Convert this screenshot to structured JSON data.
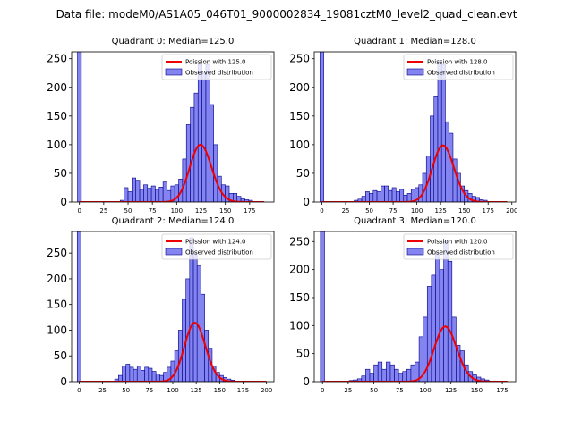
{
  "figure_title": "Data file: modeM0/AS1A05_046T01_9000002834_19081cztM0_level2_quad_clean.evt",
  "colors": {
    "bar_fill": "#7777ee",
    "bar_edge": "#000088",
    "fit_line": "#ee0000",
    "axes": "#000000"
  },
  "chart_data": [
    {
      "type": "bar",
      "title": "Quadrant 0: Median=125.0",
      "xlim": [
        -8,
        200
      ],
      "ylim": [
        0,
        262
      ],
      "xticks": [
        0,
        25,
        50,
        75,
        100,
        125,
        150,
        175
      ],
      "yticks": [
        0,
        50,
        100,
        150,
        200,
        250
      ],
      "bin_width": 4,
      "zero_bar": {
        "x": 0,
        "value": 262
      },
      "bins": [
        {
          "x": 44,
          "value": 3
        },
        {
          "x": 48,
          "value": 25
        },
        {
          "x": 52,
          "value": 18
        },
        {
          "x": 56,
          "value": 42
        },
        {
          "x": 60,
          "value": 38
        },
        {
          "x": 64,
          "value": 22
        },
        {
          "x": 68,
          "value": 30
        },
        {
          "x": 72,
          "value": 24
        },
        {
          "x": 76,
          "value": 28
        },
        {
          "x": 80,
          "value": 22
        },
        {
          "x": 84,
          "value": 26
        },
        {
          "x": 88,
          "value": 35
        },
        {
          "x": 92,
          "value": 20
        },
        {
          "x": 96,
          "value": 28
        },
        {
          "x": 100,
          "value": 30
        },
        {
          "x": 104,
          "value": 40
        },
        {
          "x": 108,
          "value": 75
        },
        {
          "x": 112,
          "value": 135
        },
        {
          "x": 116,
          "value": 165
        },
        {
          "x": 120,
          "value": 190
        },
        {
          "x": 124,
          "value": 240
        },
        {
          "x": 128,
          "value": 225
        },
        {
          "x": 132,
          "value": 240
        },
        {
          "x": 136,
          "value": 170
        },
        {
          "x": 140,
          "value": 100
        },
        {
          "x": 144,
          "value": 45
        },
        {
          "x": 148,
          "value": 30
        },
        {
          "x": 152,
          "value": 28
        },
        {
          "x": 156,
          "value": 15
        },
        {
          "x": 160,
          "value": 15
        },
        {
          "x": 164,
          "value": 10
        },
        {
          "x": 168,
          "value": 6
        },
        {
          "x": 172,
          "value": 4
        },
        {
          "x": 176,
          "value": 3
        }
      ],
      "fit": {
        "label": "Poission with 125.0",
        "lambda": 125.0,
        "scale": 2800,
        "x_range": [
          0,
          190
        ]
      },
      "legend": {
        "fit_label": "Poission with 125.0",
        "bars_label": "Observed distribution",
        "position": "top-right"
      }
    },
    {
      "type": "bar",
      "title": "Quadrant 1: Median=128.0",
      "xlim": [
        -8,
        204
      ],
      "ylim": [
        0,
        262
      ],
      "xticks": [
        0,
        25,
        50,
        75,
        100,
        125,
        150,
        175,
        200
      ],
      "yticks": [
        0,
        50,
        100,
        150,
        200,
        250
      ],
      "bin_width": 4,
      "zero_bar": {
        "x": 0,
        "value": 262
      },
      "bins": [
        {
          "x": 36,
          "value": 3
        },
        {
          "x": 40,
          "value": 5
        },
        {
          "x": 44,
          "value": 10
        },
        {
          "x": 48,
          "value": 18
        },
        {
          "x": 52,
          "value": 15
        },
        {
          "x": 56,
          "value": 20
        },
        {
          "x": 60,
          "value": 18
        },
        {
          "x": 64,
          "value": 28
        },
        {
          "x": 68,
          "value": 28
        },
        {
          "x": 72,
          "value": 20
        },
        {
          "x": 76,
          "value": 25
        },
        {
          "x": 80,
          "value": 18
        },
        {
          "x": 84,
          "value": 22
        },
        {
          "x": 88,
          "value": 12
        },
        {
          "x": 92,
          "value": 15
        },
        {
          "x": 96,
          "value": 22
        },
        {
          "x": 100,
          "value": 25
        },
        {
          "x": 104,
          "value": 30
        },
        {
          "x": 108,
          "value": 50
        },
        {
          "x": 112,
          "value": 80
        },
        {
          "x": 116,
          "value": 150
        },
        {
          "x": 120,
          "value": 185
        },
        {
          "x": 124,
          "value": 245
        },
        {
          "x": 128,
          "value": 240
        },
        {
          "x": 132,
          "value": 140
        },
        {
          "x": 136,
          "value": 120
        },
        {
          "x": 140,
          "value": 75
        },
        {
          "x": 144,
          "value": 50
        },
        {
          "x": 148,
          "value": 28
        },
        {
          "x": 152,
          "value": 20
        },
        {
          "x": 156,
          "value": 15
        },
        {
          "x": 160,
          "value": 10
        },
        {
          "x": 164,
          "value": 8
        },
        {
          "x": 168,
          "value": 4
        },
        {
          "x": 172,
          "value": 3
        }
      ],
      "fit": {
        "label": "Poission with 128.0",
        "lambda": 128.0,
        "scale": 2800,
        "x_range": [
          0,
          195
        ]
      },
      "legend": {
        "fit_label": "Poission with 128.0",
        "bars_label": "Observed distribution",
        "position": "top-right"
      }
    },
    {
      "type": "bar",
      "title": "Quadrant 2: Median=124.0",
      "xlim": [
        -8,
        208
      ],
      "ylim": [
        0,
        292
      ],
      "xticks": [
        0,
        25,
        50,
        75,
        100,
        125,
        150,
        175,
        200
      ],
      "yticks": [
        0,
        50,
        100,
        150,
        200,
        250
      ],
      "bin_width": 4,
      "zero_bar": {
        "x": 0,
        "value": 292
      },
      "bins": [
        {
          "x": 40,
          "value": 5
        },
        {
          "x": 44,
          "value": 12
        },
        {
          "x": 48,
          "value": 30
        },
        {
          "x": 52,
          "value": 34
        },
        {
          "x": 56,
          "value": 28
        },
        {
          "x": 60,
          "value": 24
        },
        {
          "x": 64,
          "value": 30
        },
        {
          "x": 68,
          "value": 22
        },
        {
          "x": 72,
          "value": 28
        },
        {
          "x": 76,
          "value": 26
        },
        {
          "x": 80,
          "value": 20
        },
        {
          "x": 84,
          "value": 15
        },
        {
          "x": 88,
          "value": 12
        },
        {
          "x": 92,
          "value": 18
        },
        {
          "x": 96,
          "value": 28
        },
        {
          "x": 100,
          "value": 40
        },
        {
          "x": 104,
          "value": 60
        },
        {
          "x": 108,
          "value": 100
        },
        {
          "x": 112,
          "value": 160
        },
        {
          "x": 116,
          "value": 200
        },
        {
          "x": 120,
          "value": 280
        },
        {
          "x": 124,
          "value": 250
        },
        {
          "x": 128,
          "value": 225
        },
        {
          "x": 132,
          "value": 170
        },
        {
          "x": 136,
          "value": 100
        },
        {
          "x": 140,
          "value": 65
        },
        {
          "x": 144,
          "value": 30
        },
        {
          "x": 148,
          "value": 18
        },
        {
          "x": 152,
          "value": 12
        },
        {
          "x": 156,
          "value": 8
        },
        {
          "x": 160,
          "value": 5
        },
        {
          "x": 164,
          "value": 3
        }
      ],
      "fit": {
        "label": "Poission with 124.0",
        "lambda": 124.0,
        "scale": 3200,
        "x_range": [
          0,
          200
        ]
      },
      "legend": {
        "fit_label": "Poission with 124.0",
        "bars_label": "Observed distribution",
        "position": "top-right"
      }
    },
    {
      "type": "bar",
      "title": "Quadrant 3: Median=120.0",
      "xlim": [
        -8,
        188
      ],
      "ylim": [
        0,
        268
      ],
      "xticks": [
        0,
        25,
        50,
        75,
        100,
        125,
        150,
        175
      ],
      "yticks": [
        0,
        50,
        100,
        150,
        200,
        250
      ],
      "bin_width": 4,
      "zero_bar": {
        "x": 0,
        "value": 268
      },
      "bins": [
        {
          "x": 28,
          "value": 2
        },
        {
          "x": 32,
          "value": 3
        },
        {
          "x": 36,
          "value": 5
        },
        {
          "x": 40,
          "value": 10
        },
        {
          "x": 44,
          "value": 22
        },
        {
          "x": 48,
          "value": 15
        },
        {
          "x": 52,
          "value": 30
        },
        {
          "x": 56,
          "value": 35
        },
        {
          "x": 60,
          "value": 22
        },
        {
          "x": 64,
          "value": 35
        },
        {
          "x": 68,
          "value": 30
        },
        {
          "x": 72,
          "value": 22
        },
        {
          "x": 76,
          "value": 15
        },
        {
          "x": 80,
          "value": 18
        },
        {
          "x": 84,
          "value": 22
        },
        {
          "x": 88,
          "value": 30
        },
        {
          "x": 92,
          "value": 35
        },
        {
          "x": 96,
          "value": 80
        },
        {
          "x": 100,
          "value": 115
        },
        {
          "x": 104,
          "value": 170
        },
        {
          "x": 108,
          "value": 190
        },
        {
          "x": 112,
          "value": 230
        },
        {
          "x": 116,
          "value": 200
        },
        {
          "x": 120,
          "value": 250
        },
        {
          "x": 124,
          "value": 215
        },
        {
          "x": 128,
          "value": 115
        },
        {
          "x": 132,
          "value": 65
        },
        {
          "x": 136,
          "value": 55
        },
        {
          "x": 140,
          "value": 30
        },
        {
          "x": 144,
          "value": 18
        },
        {
          "x": 148,
          "value": 12
        },
        {
          "x": 152,
          "value": 8
        },
        {
          "x": 156,
          "value": 5
        },
        {
          "x": 160,
          "value": 3
        }
      ],
      "fit": {
        "label": "Poission with 120.0",
        "lambda": 120.0,
        "scale": 2700,
        "x_range": [
          0,
          180
        ]
      },
      "legend": {
        "fit_label": "Poission with 120.0",
        "bars_label": "Observed distribution",
        "position": "top-right"
      }
    }
  ]
}
